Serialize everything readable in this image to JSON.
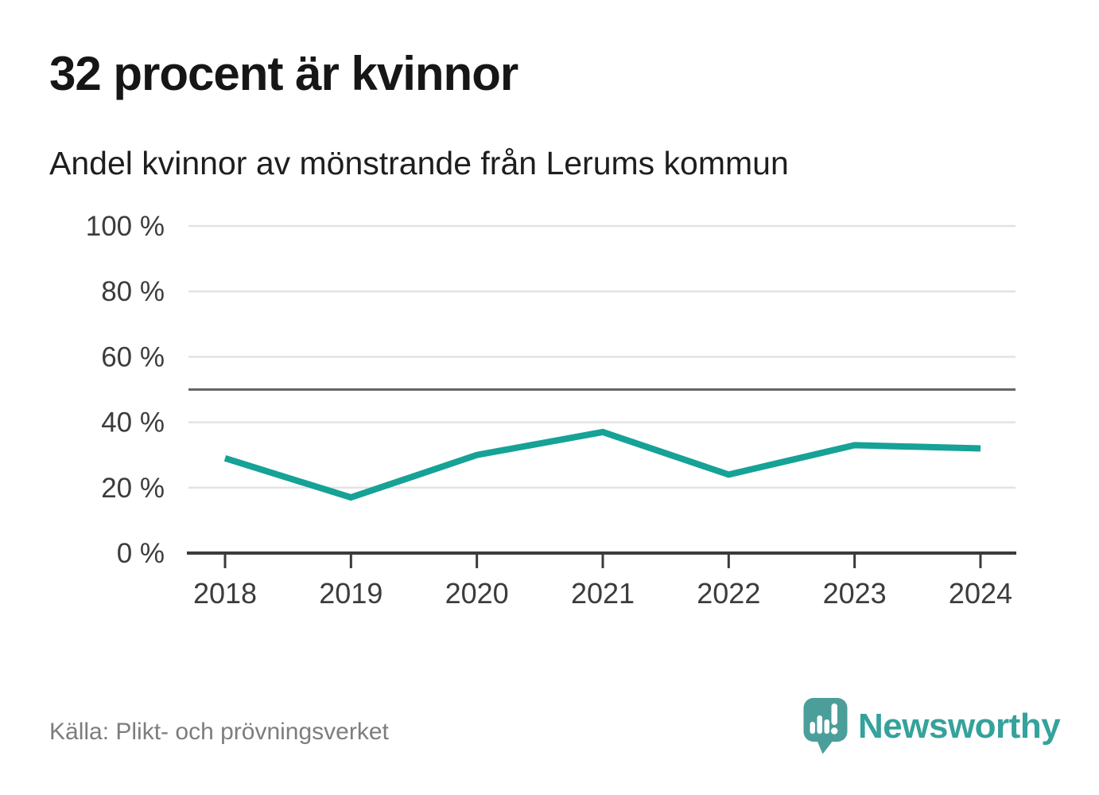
{
  "header": {
    "title": "32 procent är kvinnor",
    "subtitle": "Andel kvinnor av mönstrande från Lerums kommun"
  },
  "chart_data": {
    "type": "line",
    "title": "32 procent är kvinnor",
    "subtitle": "Andel kvinnor av mönstrande från Lerums kommun",
    "categories": [
      "2018",
      "2019",
      "2020",
      "2021",
      "2022",
      "2023",
      "2024"
    ],
    "series": [
      {
        "name": "Andel kvinnor av mönstrande",
        "values": [
          29,
          17,
          30,
          37,
          24,
          33,
          32
        ]
      }
    ],
    "unit": "%",
    "ylim": [
      0,
      100
    ],
    "y_ticks": [
      0,
      20,
      40,
      60,
      80,
      100
    ],
    "y_tick_labels": [
      "0 %",
      "20 %",
      "40 %",
      "60 %",
      "80 %",
      "100 %"
    ],
    "reference_line": 50,
    "grid": true,
    "legend": "none",
    "line_color": "#16a296"
  },
  "footer": {
    "source": "Källa: Plikt- och prövningsverket",
    "brand": "Newsworthy"
  },
  "colors": {
    "accent_teal": "#16a296",
    "logo_bubble": "#4c9e9a",
    "logo_text": "#35a29b",
    "axis": "#3b3b3b",
    "grid": "#e3e3e3",
    "reference_line": "#666666",
    "title_text": "#161616",
    "source_text": "#7d7d7d"
  }
}
